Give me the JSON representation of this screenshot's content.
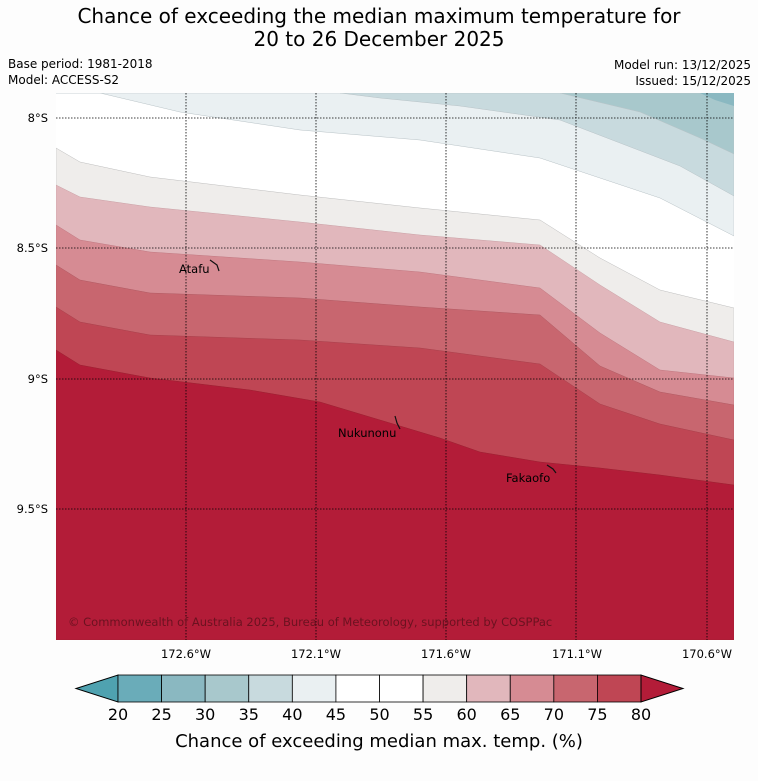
{
  "header": {
    "title_line1": "Chance of exceeding the median maximum temperature for",
    "title_line2": "20 to 26 December 2025",
    "base_period": "Base period: 1981-2018",
    "model": "Model: ACCESS-S2",
    "model_run": "Model run: 13/12/2025",
    "issued": "Issued: 15/12/2025"
  },
  "map": {
    "lat_labels": [
      "8°S",
      "8.5°S",
      "9°S",
      "9.5°S"
    ],
    "lon_labels": [
      "172.6°W",
      "172.1°W",
      "171.6°W",
      "171.1°W",
      "170.6°W"
    ],
    "places": [
      {
        "name": "Atafu"
      },
      {
        "name": "Nukunonu"
      },
      {
        "name": "Fakaofo"
      }
    ],
    "copyright": "© Commonwealth of Australia 2025, Bureau of Meteorology, supported by COSPPac"
  },
  "colorbar": {
    "ticks": [
      "20",
      "25",
      "30",
      "35",
      "40",
      "45",
      "50",
      "55",
      "60",
      "65",
      "70",
      "75",
      "80"
    ],
    "colors": [
      "#6aacb9",
      "#8ab8c1",
      "#a8c8cc",
      "#c8dade",
      "#eaf0f2",
      "#ffffff",
      "#ffffff",
      "#efedeb",
      "#e1b7bc",
      "#d68b93",
      "#c8666f",
      "#bf4654"
    ],
    "under_color": "#4fa2b0",
    "over_color": "#b31c38",
    "label": "Chance of exceeding median max. temp. (%)"
  }
}
